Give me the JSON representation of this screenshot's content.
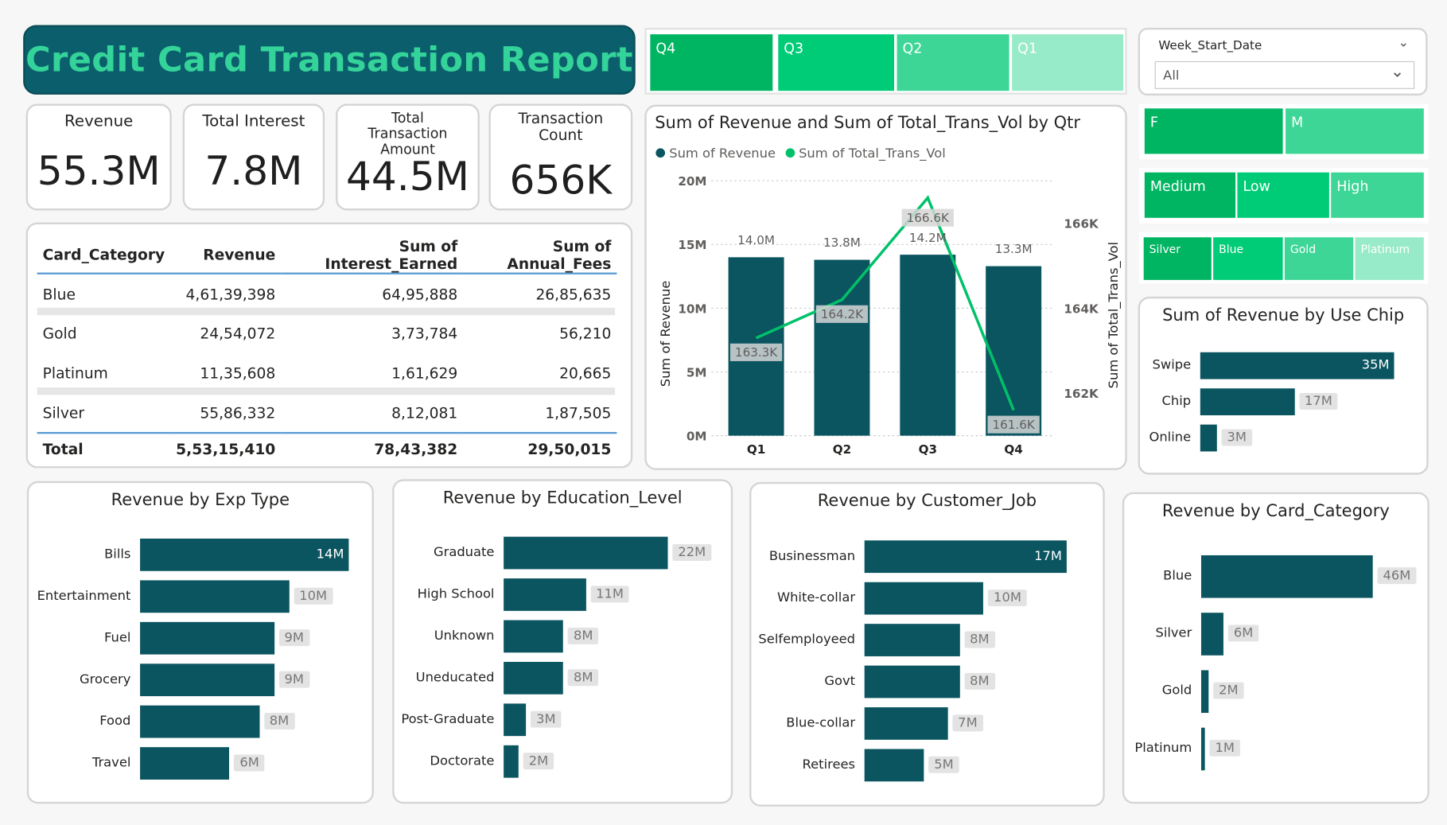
{
  "title": "Credit Card Transaction Report",
  "kpis": [
    {
      "label": "Revenue",
      "value": "55.3M"
    },
    {
      "label": "Total Interest",
      "value": "7.8M"
    },
    {
      "label": "Total Transaction Amount",
      "value": "44.5M"
    },
    {
      "label": "Transaction Count",
      "value": "656K"
    }
  ],
  "colors": {
    "dark_teal": "#0b5560",
    "green": "#00c16a",
    "title_green": "#34d399",
    "banner": "#0b5f6c"
  },
  "quarter_slicer": [
    "Q4",
    "Q3",
    "Q2",
    "Q1"
  ],
  "week_slicer": {
    "label": "Week_Start_Date",
    "value": "All"
  },
  "gender_slicer": [
    "F",
    "M"
  ],
  "income_slicer": [
    "Medium",
    "Low",
    "High"
  ],
  "category_slicer": [
    "Silver",
    "Blue",
    "Gold",
    "Platinum"
  ],
  "table": {
    "headers": [
      "Card_Category",
      "Revenue",
      "Sum of Interest_Earned",
      "Sum of Annual_Fees"
    ],
    "rows": [
      [
        "Blue",
        "4,61,39,398",
        "64,95,888",
        "26,85,635"
      ],
      [
        "Gold",
        "24,54,072",
        "3,73,784",
        "56,210"
      ],
      [
        "Platinum",
        "11,35,608",
        "1,61,629",
        "20,665"
      ],
      [
        "Silver",
        "55,86,332",
        "8,12,081",
        "1,87,505"
      ]
    ],
    "total": [
      "Total",
      "5,53,15,410",
      "78,43,382",
      "29,50,015"
    ]
  },
  "chart_data": [
    {
      "type": "bar",
      "id": "combo",
      "title": "Sum of Revenue and Sum of Total_Trans_Vol by Qtr",
      "legend": [
        "Sum of Revenue",
        "Sum of Total_Trans_Vol"
      ],
      "categories": [
        "Q1",
        "Q2",
        "Q3",
        "Q4"
      ],
      "series": [
        {
          "name": "Sum of Revenue",
          "values": [
            14.0,
            13.8,
            14.2,
            13.3
          ],
          "labels": [
            "14.0M",
            "13.8M",
            "14.2M",
            "13.3M"
          ]
        },
        {
          "name": "Sum of Total_Trans_Vol",
          "values": [
            163.3,
            164.2,
            166.6,
            161.6
          ],
          "labels": [
            "163.3K",
            "164.2K",
            "166.6K",
            "161.6K"
          ]
        }
      ],
      "ylabel": "Sum of Revenue",
      "y2label": "Sum of Total_Trans_Vol",
      "yticks": [
        "0M",
        "5M",
        "10M",
        "15M",
        "20M"
      ],
      "ylim": [
        0,
        20
      ],
      "y2ticks": [
        "162K",
        "164K",
        "166K"
      ],
      "y2lim": [
        161,
        167
      ]
    },
    {
      "type": "bar",
      "id": "usechip",
      "title": "Sum of Revenue by Use Chip",
      "categories": [
        "Swipe",
        "Chip",
        "Online"
      ],
      "values": [
        35,
        17,
        3
      ],
      "labels": [
        "35M",
        "17M",
        "3M"
      ]
    },
    {
      "type": "bar",
      "id": "exptype",
      "title": "Revenue by Exp Type",
      "categories": [
        "Bills",
        "Entertainment",
        "Fuel",
        "Grocery",
        "Food",
        "Travel"
      ],
      "values": [
        14,
        10,
        9,
        9,
        8,
        6
      ],
      "labels": [
        "14M",
        "10M",
        "9M",
        "9M",
        "8M",
        "6M"
      ]
    },
    {
      "type": "bar",
      "id": "education",
      "title": "Revenue by Education_Level",
      "categories": [
        "Graduate",
        "High School",
        "Unknown",
        "Uneducated",
        "Post-Graduate",
        "Doctorate"
      ],
      "values": [
        22,
        11,
        8,
        8,
        3,
        2
      ],
      "labels": [
        "22M",
        "11M",
        "8M",
        "8M",
        "3M",
        "2M"
      ]
    },
    {
      "type": "bar",
      "id": "job",
      "title": "Revenue by Customer_Job",
      "categories": [
        "Businessman",
        "White-collar",
        "Selfemployeed",
        "Govt",
        "Blue-collar",
        "Retirees"
      ],
      "values": [
        17,
        10,
        8,
        8,
        7,
        5
      ],
      "labels": [
        "17M",
        "10M",
        "8M",
        "8M",
        "7M",
        "5M"
      ]
    },
    {
      "type": "bar",
      "id": "cardcat",
      "title": "Revenue by Card_Category",
      "categories": [
        "Blue",
        "Silver",
        "Gold",
        "Platinum"
      ],
      "values": [
        46,
        6,
        2,
        1
      ],
      "labels": [
        "46M",
        "6M",
        "2M",
        "1M"
      ]
    }
  ]
}
